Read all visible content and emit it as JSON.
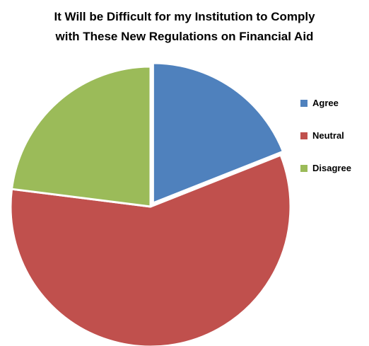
{
  "chart_data": {
    "type": "pie",
    "title_lines": [
      "It Will be Difficult for my Institution to Comply",
      "with These New Regulations on Financial Aid"
    ],
    "categories": [
      "Agree",
      "Neutral",
      "Disagree"
    ],
    "values": [
      19,
      58,
      23
    ],
    "unit": "percent",
    "colors": [
      "#4F81BD",
      "#C0504D",
      "#9BBB59"
    ],
    "exploded_slice": "Agree",
    "start": "12 o'clock, clockwise",
    "legend_position": "right"
  }
}
